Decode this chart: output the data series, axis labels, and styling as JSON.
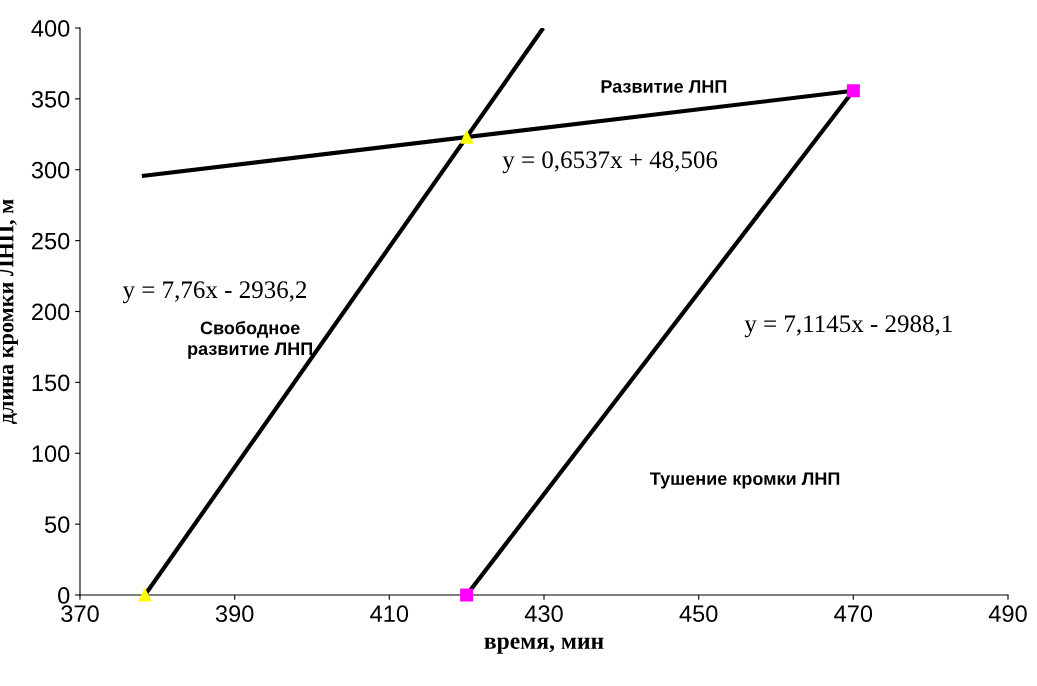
{
  "chart_data": {
    "type": "line",
    "xlabel": "время, мин",
    "ylabel": "длина кромки ЛНП, м",
    "xlim": [
      370,
      490
    ],
    "xticks": [
      370,
      390,
      410,
      430,
      450,
      470,
      490
    ],
    "ylim": [
      0,
      400
    ],
    "yticks": [
      0,
      50,
      100,
      150,
      200,
      250,
      300,
      350,
      400
    ],
    "grid": false,
    "legend": false,
    "series": [
      {
        "color": "#000000",
        "x": [
          378.4,
          429.9
        ],
        "values": [
          0,
          400
        ]
      },
      {
        "color": "#000000",
        "x": [
          378,
          470
        ],
        "values": [
          295.6,
          355.7
        ]
      },
      {
        "color": "#000000",
        "x": [
          420,
          470
        ],
        "values": [
          0,
          355.7
        ]
      },
      {
        "type": "scatter",
        "color": "#ffff00",
        "x": [
          378.4,
          420
        ],
        "values": [
          0,
          323
        ],
        "marker": "triangle"
      },
      {
        "type": "scatter",
        "color": "#ff00ff",
        "x": [
          420,
          470
        ],
        "values": [
          0,
          355.7
        ],
        "marker": "square"
      }
    ],
    "annotations": [
      "Развитие ЛНП",
      "Свободное\nразвитие ЛНП",
      "Тушение кромки ЛНП",
      "y = 0,6537x + 48,506",
      "y = 7,76x - 2936,2",
      "y = 7,1145x - 2988,1"
    ]
  }
}
